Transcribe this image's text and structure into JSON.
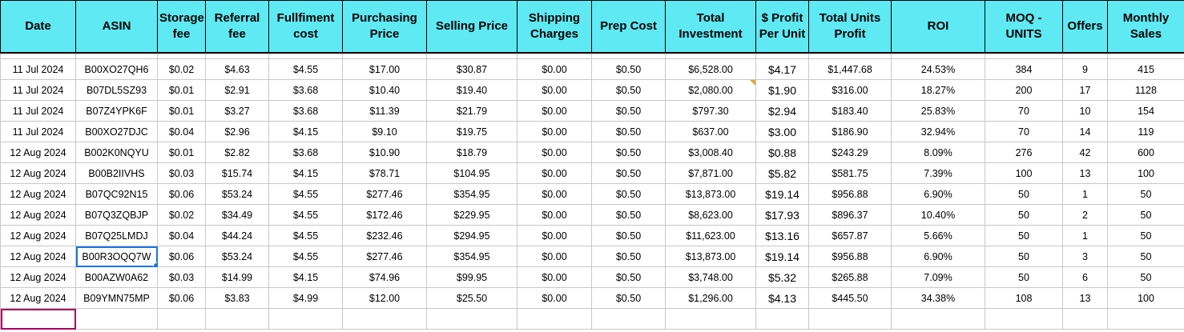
{
  "colors": {
    "header_bg": "#5ee9f3",
    "selection": "#1a73e8",
    "active_empty_cell": "#a8005e",
    "note_marker": "#e6a23c"
  },
  "headers": [
    "Date",
    "ASIN",
    "Storage fee",
    "Referral fee",
    "Fullfiment cost",
    "Purchasing Price",
    "Selling Price",
    "Shipping Charges",
    "Prep Cost",
    "Total Investment",
    "$ Profit Per Unit",
    "Total Units Profit",
    "ROI",
    "MOQ - UNITS",
    "Offers",
    "Monthly Sales"
  ],
  "rows": [
    [
      "11 Jul 2024",
      "B00XO27QH6",
      "$0.02",
      "$4.63",
      "$4.55",
      "$17.00",
      "$30.87",
      "$0.00",
      "$0.50",
      "$6,528.00",
      "$4.17",
      "$1,447.68",
      "24.53%",
      "384",
      "9",
      "415"
    ],
    [
      "11 Jul 2024",
      "B07DL5SZ93",
      "$0.01",
      "$2.91",
      "$3.68",
      "$10.40",
      "$19.40",
      "$0.00",
      "$0.50",
      "$2,080.00",
      "$1.90",
      "$316.00",
      "18.27%",
      "200",
      "17",
      "1128"
    ],
    [
      "11 Jul 2024",
      "B07Z4YPK6F",
      "$0.01",
      "$3.27",
      "$3.68",
      "$11.39",
      "$21.79",
      "$0.00",
      "$0.50",
      "$797.30",
      "$2.94",
      "$183.40",
      "25.83%",
      "70",
      "10",
      "154"
    ],
    [
      "11 Jul 2024",
      "B00XO27DJC",
      "$0.04",
      "$2.96",
      "$4.15",
      "$9.10",
      "$19.75",
      "$0.00",
      "$0.50",
      "$637.00",
      "$3.00",
      "$186.90",
      "32.94%",
      "70",
      "14",
      "119"
    ],
    [
      "12 Aug 2024",
      "B002K0NQYU",
      "$0.01",
      "$2.82",
      "$3.68",
      "$10.90",
      "$18.79",
      "$0.00",
      "$0.50",
      "$3,008.40",
      "$0.88",
      "$243.29",
      "8.09%",
      "276",
      "42",
      "600"
    ],
    [
      "12 Aug 2024",
      "B00B2IIVHS",
      "$0.03",
      "$15.74",
      "$4.15",
      "$78.71",
      "$104.95",
      "$0.00",
      "$0.50",
      "$7,871.00",
      "$5.82",
      "$581.75",
      "7.39%",
      "100",
      "13",
      "100"
    ],
    [
      "12 Aug 2024",
      "B07QC92N15",
      "$0.06",
      "$53.24",
      "$4.55",
      "$277.46",
      "$354.95",
      "$0.00",
      "$0.50",
      "$13,873.00",
      "$19.14",
      "$956.88",
      "6.90%",
      "50",
      "1",
      "50"
    ],
    [
      "12 Aug 2024",
      "B07Q3ZQBJP",
      "$0.02",
      "$34.49",
      "$4.55",
      "$172.46",
      "$229.95",
      "$0.00",
      "$0.50",
      "$8,623.00",
      "$17.93",
      "$896.37",
      "10.40%",
      "50",
      "2",
      "50"
    ],
    [
      "12 Aug 2024",
      "B07Q25LMDJ",
      "$0.04",
      "$44.24",
      "$4.55",
      "$232.46",
      "$294.95",
      "$0.00",
      "$0.50",
      "$11,623.00",
      "$13.16",
      "$657.87",
      "5.66%",
      "50",
      "1",
      "50"
    ],
    [
      "12 Aug 2024",
      "B00R3OQQ7W",
      "$0.06",
      "$53.24",
      "$4.55",
      "$277.46",
      "$354.95",
      "$0.00",
      "$0.50",
      "$13,873.00",
      "$19.14",
      "$956.88",
      "6.90%",
      "50",
      "3",
      "50"
    ],
    [
      "12 Aug 2024",
      "B00AZW0A62",
      "$0.03",
      "$14.99",
      "$4.15",
      "$74.96",
      "$99.95",
      "$0.00",
      "$0.50",
      "$3,748.00",
      "$5.32",
      "$265.88",
      "7.09%",
      "50",
      "6",
      "50"
    ],
    [
      "12 Aug 2024",
      "B09YMN75MP",
      "$0.06",
      "$3.83",
      "$4.99",
      "$12.00",
      "$25.50",
      "$0.00",
      "$0.50",
      "$1,296.00",
      "$4.13",
      "$445.50",
      "34.38%",
      "108",
      "13",
      "100"
    ]
  ],
  "selected_cell": {
    "row": 9,
    "col": 1
  },
  "note_cell": {
    "row": 1,
    "col": 9
  }
}
